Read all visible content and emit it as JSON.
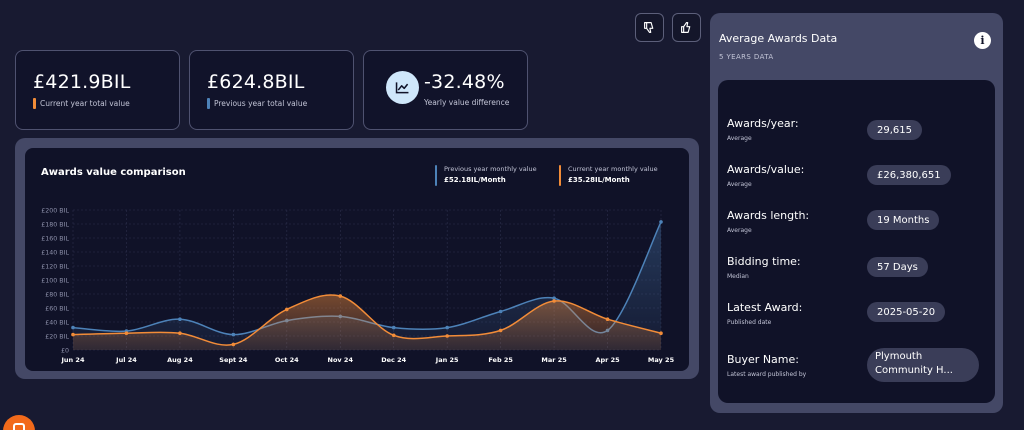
{
  "feedback": {
    "dislike_icon": "thumbs-down-icon",
    "like_icon": "thumbs-up-icon"
  },
  "stats": [
    {
      "value": "£421.9BIL",
      "label": "Current year total value",
      "color": "#f28c38"
    },
    {
      "value": "£624.8BIL",
      "label": "Previous year total value",
      "color": "#4d82b8"
    },
    {
      "value": "-32.48%",
      "label": "Yearly value difference",
      "icon": "trend-chart-icon"
    }
  ],
  "chart": {
    "legend": [
      {
        "name": "Previous year monthly value",
        "value": "£52.18IL/Month",
        "color": "#4d82b8"
      },
      {
        "name": "Current year monthly value",
        "value": "£35.28IL/Month",
        "color": "#f28c38"
      }
    ]
  },
  "chart_data": {
    "type": "line",
    "title": "Awards value comparison",
    "categories": [
      "Jun 24",
      "Jul 24",
      "Aug 24",
      "Sept 24",
      "Oct 24",
      "Nov 24",
      "Dec 24",
      "Jan 25",
      "Feb 25",
      "Mar 25",
      "Apr 25",
      "May 25"
    ],
    "y_ticks": [
      "£0",
      "£20 BIL",
      "£40 BIL",
      "£60 BIL",
      "£80 BIL",
      "£100 BIL",
      "£120 BIL",
      "£140 BIL",
      "£160 BIL",
      "£180 BIL",
      "£200 BIL"
    ],
    "ylim": [
      0,
      200
    ],
    "grid": true,
    "series": [
      {
        "name": "Previous year monthly value",
        "color": "#4d82b8",
        "values": [
          32,
          27,
          44,
          22,
          42,
          48,
          32,
          32,
          55,
          74,
          28,
          183
        ]
      },
      {
        "name": "Current year monthly value",
        "color": "#f28c38",
        "values": [
          22,
          24,
          24,
          8,
          58,
          77,
          21,
          20,
          28,
          70,
          44,
          24
        ]
      }
    ]
  },
  "side": {
    "title": "Average Awards Data",
    "subtitle": "5 YEARS DATA",
    "info_icon": "i",
    "metrics": [
      {
        "label": "Awards/year:",
        "sub": "Average",
        "value": "29,615"
      },
      {
        "label": "Awards/value:",
        "sub": "Average",
        "value": "£26,380,651"
      },
      {
        "label": "Awards length:",
        "sub": "Average",
        "value": "19 Months"
      },
      {
        "label": "Bidding time:",
        "sub": "Median",
        "value": "57 Days"
      },
      {
        "label": "Latest Award:",
        "sub": "Published date",
        "value": "2025-05-20"
      }
    ],
    "buyer": {
      "label": "Buyer Name:",
      "sub": "Latest award published by",
      "line1": "Plymouth",
      "line2": "Community H..."
    }
  }
}
